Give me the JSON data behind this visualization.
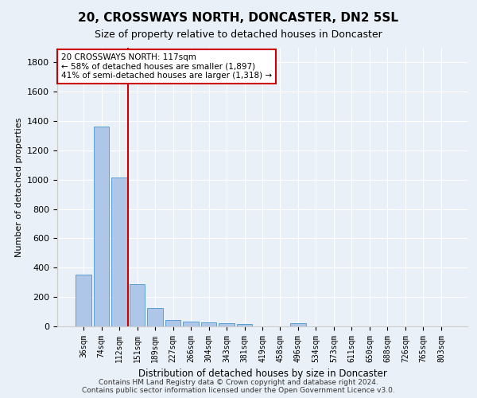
{
  "title": "20, CROSSWAYS NORTH, DONCASTER, DN2 5SL",
  "subtitle": "Size of property relative to detached houses in Doncaster",
  "xlabel": "Distribution of detached houses by size in Doncaster",
  "ylabel": "Number of detached properties",
  "categories": [
    "36sqm",
    "74sqm",
    "112sqm",
    "151sqm",
    "189sqm",
    "227sqm",
    "266sqm",
    "304sqm",
    "343sqm",
    "381sqm",
    "419sqm",
    "458sqm",
    "496sqm",
    "534sqm",
    "573sqm",
    "611sqm",
    "650sqm",
    "688sqm",
    "726sqm",
    "765sqm",
    "803sqm"
  ],
  "values": [
    355,
    1360,
    1015,
    290,
    125,
    42,
    35,
    28,
    20,
    15,
    0,
    0,
    20,
    0,
    0,
    0,
    0,
    0,
    0,
    0,
    0
  ],
  "bar_color": "#aec6e8",
  "bar_edge_color": "#5a9fd4",
  "vline_x_index": 2,
  "vline_color": "#cc0000",
  "annotation_text": "20 CROSSWAYS NORTH: 117sqm\n← 58% of detached houses are smaller (1,897)\n41% of semi-detached houses are larger (1,318) →",
  "annotation_box_color": "#cc0000",
  "ylim": [
    0,
    1900
  ],
  "yticks": [
    0,
    200,
    400,
    600,
    800,
    1000,
    1200,
    1400,
    1600,
    1800
  ],
  "footer_line1": "Contains HM Land Registry data © Crown copyright and database right 2024.",
  "footer_line2": "Contains public sector information licensed under the Open Government Licence v3.0.",
  "bg_color": "#eaf0f8",
  "plot_bg_color": "#eaf0f8"
}
